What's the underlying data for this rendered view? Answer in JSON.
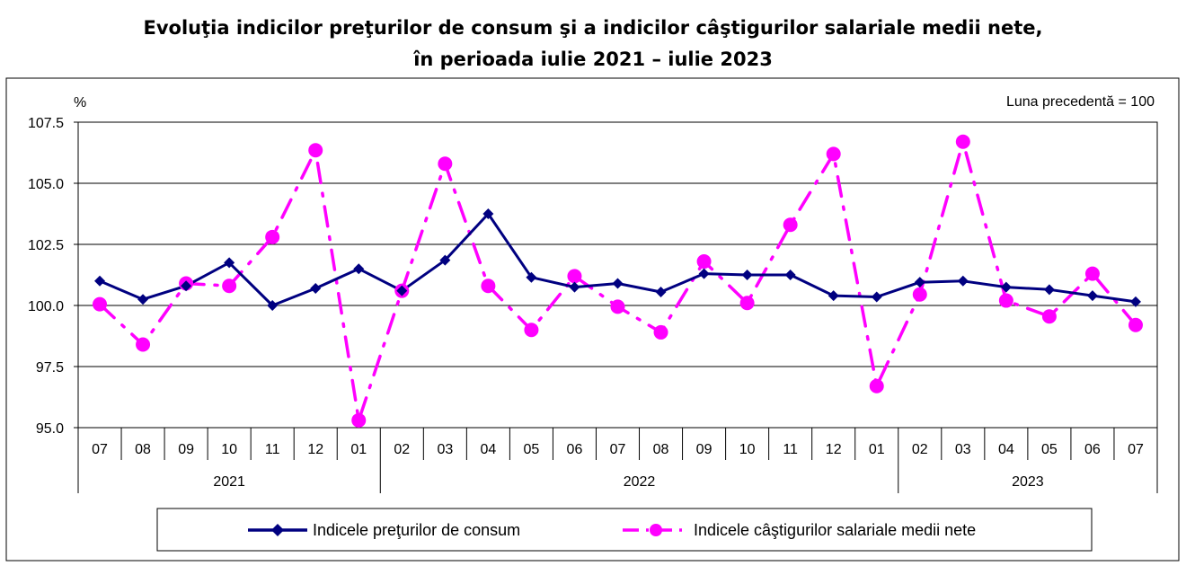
{
  "chart_data": {
    "type": "line",
    "title": "Evoluţia indicilor preţurilor de consum şi a indicilor câştigurilor salariale medii nete,",
    "subtitle": "în perioada iulie 2021 – iulie 2023",
    "ylabel": "%",
    "note": "Luna precedentă = 100",
    "ylim": [
      95.0,
      107.5
    ],
    "yticks": [
      "107.5",
      "105.0",
      "102.5",
      "100.0",
      "97.5",
      "95.0"
    ],
    "categories": [
      "07",
      "08",
      "09",
      "10",
      "11",
      "12",
      "01",
      "02",
      "03",
      "04",
      "05",
      "06",
      "07",
      "08",
      "09",
      "10",
      "11",
      "12",
      "01",
      "02",
      "03",
      "04",
      "05",
      "06",
      "07"
    ],
    "years": [
      {
        "label": "2021",
        "start": 0,
        "end": 6
      },
      {
        "label": "2022",
        "start": 7,
        "end": 18
      },
      {
        "label": "2023",
        "start": 19,
        "end": 24
      }
    ],
    "grid": true,
    "legend_position": "bottom",
    "series": [
      {
        "name": "Indicele preţurilor de consum",
        "color": "#000080",
        "marker": "diamond",
        "line": "solid",
        "values": [
          101.0,
          100.25,
          100.8,
          101.75,
          100.0,
          100.7,
          101.5,
          100.6,
          101.85,
          103.75,
          101.15,
          100.75,
          100.9,
          100.55,
          101.3,
          101.25,
          101.25,
          100.4,
          100.35,
          100.95,
          101.0,
          100.75,
          100.65,
          100.4,
          100.15
        ]
      },
      {
        "name": "Indicele câştigurilor salariale medii nete",
        "color": "#FF00FF",
        "marker": "circle",
        "line": "dash-dot",
        "values": [
          100.05,
          98.4,
          100.9,
          100.8,
          102.8,
          106.35,
          95.3,
          100.6,
          105.8,
          100.8,
          99.0,
          101.2,
          99.95,
          98.9,
          101.8,
          100.1,
          103.3,
          106.2,
          96.7,
          100.45,
          106.7,
          100.2,
          99.55,
          101.3,
          99.2
        ]
      }
    ]
  }
}
